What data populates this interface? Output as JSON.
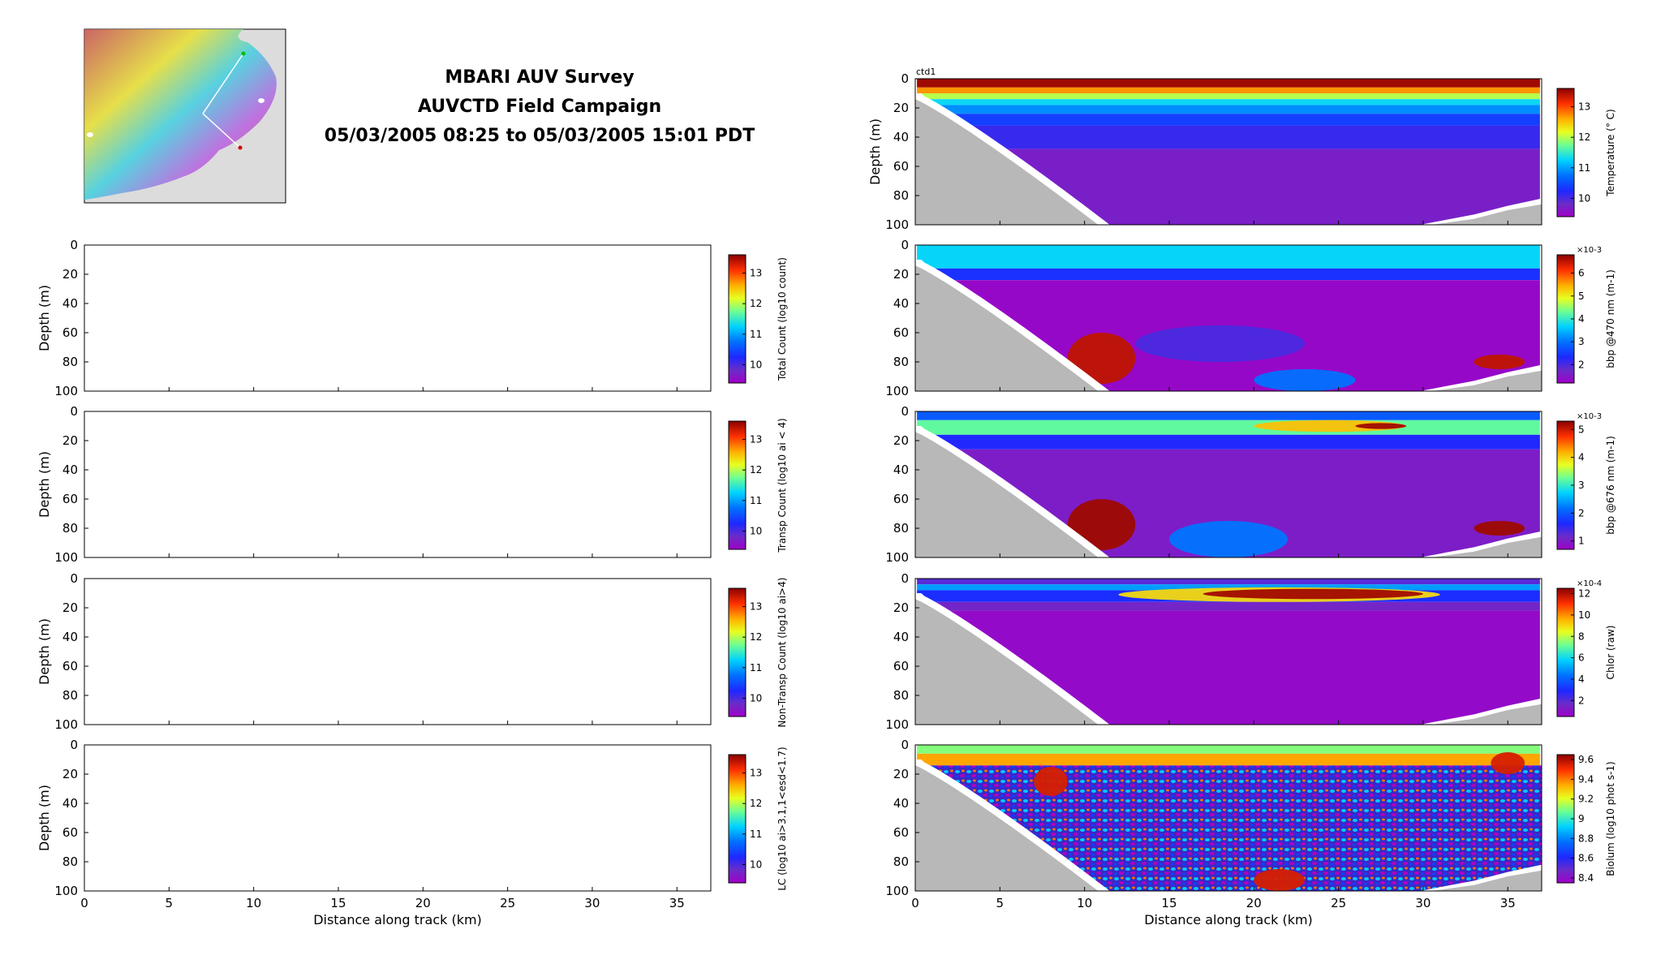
{
  "title": {
    "line1": "MBARI AUV Survey",
    "line2": "AUVCTD Field Campaign",
    "line3": "05/03/2005 08:25 to 05/03/2005 15:01 PDT"
  },
  "map_inset": {
    "description_icon": "bathymetry-map-icon"
  },
  "colors": {
    "seafloor": "#b8b8b8",
    "background_low": "#a100b8",
    "background_mid": "#5b25b2"
  },
  "chart_data": [
    {
      "type": "heatmap",
      "panel": "left-1",
      "ylabel": "Depth (m)",
      "ylim": [
        100,
        0
      ],
      "xlim": [
        0,
        37
      ],
      "yticks": [
        0,
        20,
        40,
        60,
        80,
        100
      ],
      "xticks": [],
      "cbar_label": "Total Count (log10 count)",
      "cbar_ticks": [
        10,
        11,
        12,
        13
      ],
      "cbar_range": [
        9.4,
        13.6
      ],
      "empty": true
    },
    {
      "type": "heatmap",
      "panel": "left-2",
      "ylabel": "Depth (m)",
      "ylim": [
        100,
        0
      ],
      "xlim": [
        0,
        37
      ],
      "yticks": [
        0,
        20,
        40,
        60,
        80,
        100
      ],
      "xticks": [],
      "cbar_label": "Transp Count (log10 ai < 4)",
      "cbar_ticks": [
        10,
        11,
        12,
        13
      ],
      "cbar_range": [
        9.4,
        13.6
      ],
      "empty": true
    },
    {
      "type": "heatmap",
      "panel": "left-3",
      "ylabel": "Depth (m)",
      "ylim": [
        100,
        0
      ],
      "xlim": [
        0,
        37
      ],
      "yticks": [
        0,
        20,
        40,
        60,
        80,
        100
      ],
      "xticks": [],
      "cbar_label": "Non-Transp Count (log10 ai>4)",
      "cbar_ticks": [
        10,
        11,
        12,
        13
      ],
      "cbar_range": [
        9.4,
        13.6
      ],
      "empty": true
    },
    {
      "type": "heatmap",
      "panel": "left-4",
      "ylabel": "Depth (m)",
      "xlabel": "Distance along track (km)",
      "ylim": [
        100,
        0
      ],
      "xlim": [
        0,
        37
      ],
      "yticks": [
        0,
        20,
        40,
        60,
        80,
        100
      ],
      "xticks": [
        0,
        5,
        10,
        15,
        20,
        25,
        30,
        35
      ],
      "cbar_label": "LC (log10 ai>3.1,1<esd<1.7)",
      "cbar_ticks": [
        10,
        11,
        12,
        13
      ],
      "cbar_range": [
        9.4,
        13.6
      ],
      "empty": true
    },
    {
      "type": "heatmap",
      "panel": "right-0",
      "panel_tag": "ctd1",
      "ylabel": "Depth (m)",
      "ylim": [
        100,
        0
      ],
      "xlim": [
        0,
        37
      ],
      "yticks": [
        0,
        20,
        40,
        60,
        80,
        100
      ],
      "xticks": [],
      "cbar_label": "Temperature (° C)",
      "cbar_ticks": [
        10,
        11,
        12,
        13
      ],
      "cbar_range": [
        9.4,
        13.6
      ],
      "scale_note": "",
      "layers": [
        {
          "depth": [
            0,
            6
          ],
          "value": 13.5
        },
        {
          "depth": [
            6,
            10
          ],
          "value": 12.7
        },
        {
          "depth": [
            10,
            14
          ],
          "value": 12.0
        },
        {
          "depth": [
            14,
            18
          ],
          "value": 11.3
        },
        {
          "depth": [
            18,
            24
          ],
          "value": 10.9
        },
        {
          "depth": [
            24,
            32
          ],
          "value": 10.4
        },
        {
          "depth": [
            32,
            48
          ],
          "value": 10.1
        },
        {
          "depth": [
            48,
            100
          ],
          "value": 9.7
        }
      ]
    },
    {
      "type": "heatmap",
      "panel": "right-1",
      "ylabel": "",
      "ylim": [
        100,
        0
      ],
      "xlim": [
        0,
        37
      ],
      "yticks": [
        0,
        20,
        40,
        60,
        80,
        100
      ],
      "xticks": [],
      "cbar_label": "bbp @470 nm (m-1)",
      "cbar_ticks": [
        2,
        3,
        4,
        5,
        6
      ],
      "cbar_range": [
        1.2,
        6.8
      ],
      "scale_note": "×10-3",
      "layers": [
        {
          "depth": [
            0,
            16
          ],
          "value": 3.7
        },
        {
          "depth": [
            16,
            24
          ],
          "value": 2.4
        },
        {
          "depth": [
            24,
            100
          ],
          "value": 1.3
        }
      ],
      "patches": [
        {
          "x": [
            13,
            23
          ],
          "depth": [
            55,
            80
          ],
          "value": 2.0
        },
        {
          "x": [
            20,
            26
          ],
          "depth": [
            85,
            100
          ],
          "value": 3.0
        },
        {
          "x": [
            9,
            13
          ],
          "depth": [
            60,
            95
          ],
          "value": 6.5
        },
        {
          "x": [
            33,
            36
          ],
          "depth": [
            75,
            85
          ],
          "value": 6.5
        }
      ]
    },
    {
      "type": "heatmap",
      "panel": "right-2",
      "ylabel": "",
      "ylim": [
        100,
        0
      ],
      "xlim": [
        0,
        37
      ],
      "yticks": [
        0,
        20,
        40,
        60,
        80,
        100
      ],
      "xticks": [],
      "cbar_label": "bbp @676 nm (m-1)",
      "cbar_ticks": [
        1,
        2,
        3,
        4,
        5
      ],
      "cbar_range": [
        0.7,
        5.3
      ],
      "scale_note": "×10-3",
      "layers": [
        {
          "depth": [
            0,
            6
          ],
          "value": 2.0
        },
        {
          "depth": [
            6,
            16
          ],
          "value": 3.2
        },
        {
          "depth": [
            16,
            26
          ],
          "value": 1.6
        },
        {
          "depth": [
            26,
            100
          ],
          "value": 1.0
        }
      ],
      "patches": [
        {
          "x": [
            20,
            29
          ],
          "depth": [
            6,
            14
          ],
          "value": 4.1
        },
        {
          "x": [
            26,
            29
          ],
          "depth": [
            8,
            12
          ],
          "value": 5.2
        },
        {
          "x": [
            15,
            22
          ],
          "depth": [
            75,
            100
          ],
          "value": 2.2
        },
        {
          "x": [
            9,
            13
          ],
          "depth": [
            60,
            95
          ],
          "value": 5.2
        },
        {
          "x": [
            33,
            36
          ],
          "depth": [
            75,
            85
          ],
          "value": 5.2
        }
      ]
    },
    {
      "type": "heatmap",
      "panel": "right-3",
      "ylabel": "",
      "ylim": [
        100,
        0
      ],
      "xlim": [
        0,
        37
      ],
      "yticks": [
        0,
        20,
        40,
        60,
        80,
        100
      ],
      "xticks": [],
      "cbar_label": "Chlor (raw)",
      "cbar_ticks": [
        2,
        4,
        6,
        8,
        10,
        12
      ],
      "cbar_range": [
        0.5,
        12.5
      ],
      "scale_note": "×10-4",
      "layers": [
        {
          "depth": [
            0,
            4
          ],
          "value": 2.0
        },
        {
          "depth": [
            4,
            8
          ],
          "value": 5.0
        },
        {
          "depth": [
            8,
            16
          ],
          "value": 3.0
        },
        {
          "depth": [
            16,
            22
          ],
          "value": 1.5
        },
        {
          "depth": [
            22,
            100
          ],
          "value": 0.8
        }
      ],
      "patches": [
        {
          "x": [
            12,
            31
          ],
          "depth": [
            6,
            16
          ],
          "value": 9.0
        },
        {
          "x": [
            17,
            30
          ],
          "depth": [
            7,
            14
          ],
          "value": 12.2
        }
      ]
    },
    {
      "type": "heatmap",
      "panel": "right-4",
      "ylabel": "",
      "xlabel": "Distance along track (km)",
      "ylim": [
        100,
        0
      ],
      "xlim": [
        0,
        37
      ],
      "yticks": [
        0,
        20,
        40,
        60,
        80,
        100
      ],
      "xticks": [
        0,
        5,
        10,
        15,
        20,
        25,
        30,
        35
      ],
      "cbar_label": "Biolum (log10 phot s-1)",
      "cbar_ticks": [
        8.4,
        8.6,
        8.8,
        9,
        9.2,
        9.4,
        9.6
      ],
      "cbar_range": [
        8.35,
        9.65
      ],
      "scale_note": "",
      "layers": [
        {
          "depth": [
            0,
            6
          ],
          "value": 9.1
        },
        {
          "depth": [
            6,
            14
          ],
          "value": 9.35
        },
        {
          "depth": [
            14,
            100
          ],
          "value": 8.7
        }
      ],
      "patches": [
        {
          "x": [
            7,
            9
          ],
          "depth": [
            15,
            35
          ],
          "value": 9.55
        },
        {
          "x": [
            20,
            23
          ],
          "depth": [
            85,
            100
          ],
          "value": 9.55
        },
        {
          "x": [
            34,
            36
          ],
          "depth": [
            5,
            20
          ],
          "value": 9.55
        }
      ]
    }
  ]
}
